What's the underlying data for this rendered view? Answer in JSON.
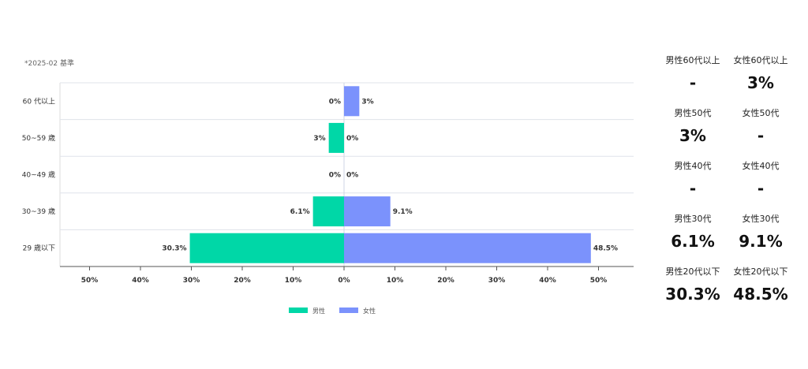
{
  "base_note": "*2025-02 基準",
  "chart_data": {
    "type": "bar",
    "orientation": "horizontal-diverging",
    "categories": [
      "60 代以上",
      "50~59 歳",
      "40~49 歳",
      "30~39 歳",
      "29 歳以下"
    ],
    "series": [
      {
        "name": "男性",
        "color": "#00d7a7",
        "values": [
          0,
          3,
          0,
          6.1,
          30.3
        ],
        "labels": [
          "0%",
          "3%",
          "0%",
          "6.1%",
          "30.3%"
        ]
      },
      {
        "name": "女性",
        "color": "#7b92fc",
        "values": [
          3,
          0,
          0,
          9.1,
          48.5
        ],
        "labels": [
          "3%",
          "0%",
          "0%",
          "9.1%",
          "48.5%"
        ]
      }
    ],
    "x_ticks": [
      "50%",
      "40%",
      "30%",
      "20%",
      "10%",
      "0%",
      "10%",
      "20%",
      "30%",
      "40%",
      "50%"
    ],
    "xlim": [
      -55,
      57
    ],
    "xlabel": "",
    "ylabel": "",
    "grid": true,
    "legend_position": "bottom"
  },
  "stats": [
    {
      "male_label": "男性60代以上",
      "male_value": "-",
      "female_label": "女性60代以上",
      "female_value": "3%"
    },
    {
      "male_label": "男性50代",
      "male_value": "3%",
      "female_label": "女性50代",
      "female_value": "-"
    },
    {
      "male_label": "男性40代",
      "male_value": "-",
      "female_label": "女性40代",
      "female_value": "-"
    },
    {
      "male_label": "男性30代",
      "male_value": "6.1%",
      "female_label": "女性30代",
      "female_value": "9.1%"
    },
    {
      "male_label": "男性20代以下",
      "male_value": "30.3%",
      "female_label": "女性20代以下",
      "female_value": "48.5%"
    }
  ]
}
